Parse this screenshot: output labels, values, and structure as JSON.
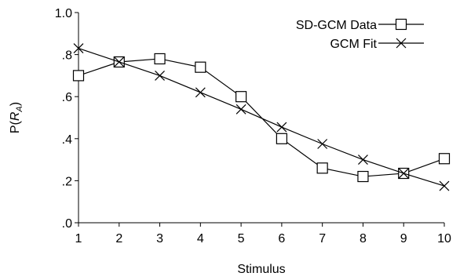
{
  "chart_data": {
    "type": "line",
    "x": [
      1,
      2,
      3,
      4,
      5,
      6,
      7,
      8,
      9,
      10
    ],
    "xlabel": "Stimulus",
    "ylabel_main": "P(",
    "ylabel_var": "R",
    "ylabel_sub": "A",
    "ylabel_close": ")",
    "xlim": [
      1,
      10
    ],
    "ylim": [
      0,
      1
    ],
    "xticks": [
      "1",
      "2",
      "3",
      "4",
      "5",
      "6",
      "7",
      "8",
      "9",
      "10"
    ],
    "yticks": [
      {
        "value": 0.0,
        "label": ".0"
      },
      {
        "value": 0.2,
        "label": ".2"
      },
      {
        "value": 0.4,
        "label": ".4"
      },
      {
        "value": 0.6,
        "label": ".6"
      },
      {
        "value": 0.8,
        "label": ".8"
      },
      {
        "value": 1.0,
        "label": "1.0"
      }
    ],
    "grid": false,
    "legend_position": "top-right",
    "series": [
      {
        "name": "SD-GCM Data",
        "marker": "square",
        "values": [
          0.7,
          0.765,
          0.78,
          0.74,
          0.6,
          0.4,
          0.26,
          0.22,
          0.235,
          0.305
        ]
      },
      {
        "name": "GCM Fit",
        "marker": "x",
        "values": [
          0.83,
          0.765,
          0.7,
          0.62,
          0.54,
          0.455,
          0.375,
          0.3,
          0.235,
          0.175
        ]
      }
    ]
  }
}
